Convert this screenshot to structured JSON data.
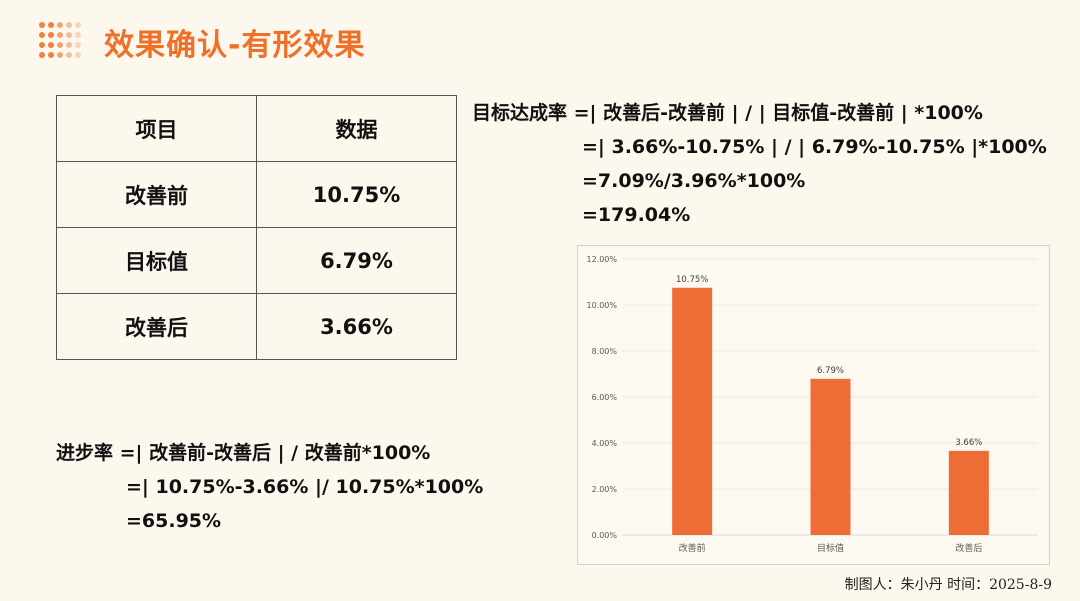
{
  "title": "效果确认-有形效果",
  "table": {
    "headers": [
      "项目",
      "数据"
    ],
    "rows": [
      [
        "改善前",
        "10.75%"
      ],
      [
        "目标值",
        "6.79%"
      ],
      [
        "改善后",
        "3.66%"
      ]
    ]
  },
  "goal_formula": [
    "目标达成率 =| 改善后-改善前 | / | 目标值-改善前 | *100%",
    "=| 3.66%-10.75% | / | 6.79%-10.75% |*100%",
    "=7.09%/3.96%*100%",
    "=179.04%"
  ],
  "progress_formula": [
    "进步率 =| 改善前-改善后 | / 改善前*100%",
    "=| 10.75%-3.66% |/ 10.75%*100%",
    "=65.95%"
  ],
  "footer": "制图人：朱小丹 时间：2025-8-9",
  "colors": {
    "accent": "#f0702a",
    "bar": "#ee6c35",
    "background": "#fdf8ee"
  },
  "chart_data": {
    "type": "bar",
    "categories": [
      "改善前",
      "目标值",
      "改善后"
    ],
    "values": [
      10.75,
      6.79,
      3.66
    ],
    "data_labels": [
      "10.75%",
      "6.79%",
      "3.66%"
    ],
    "yticks": [
      "0.00%",
      "2.00%",
      "4.00%",
      "6.00%",
      "8.00%",
      "10.00%",
      "12.00%"
    ],
    "ylim": [
      0,
      12
    ],
    "grid": true,
    "legend": "none"
  }
}
